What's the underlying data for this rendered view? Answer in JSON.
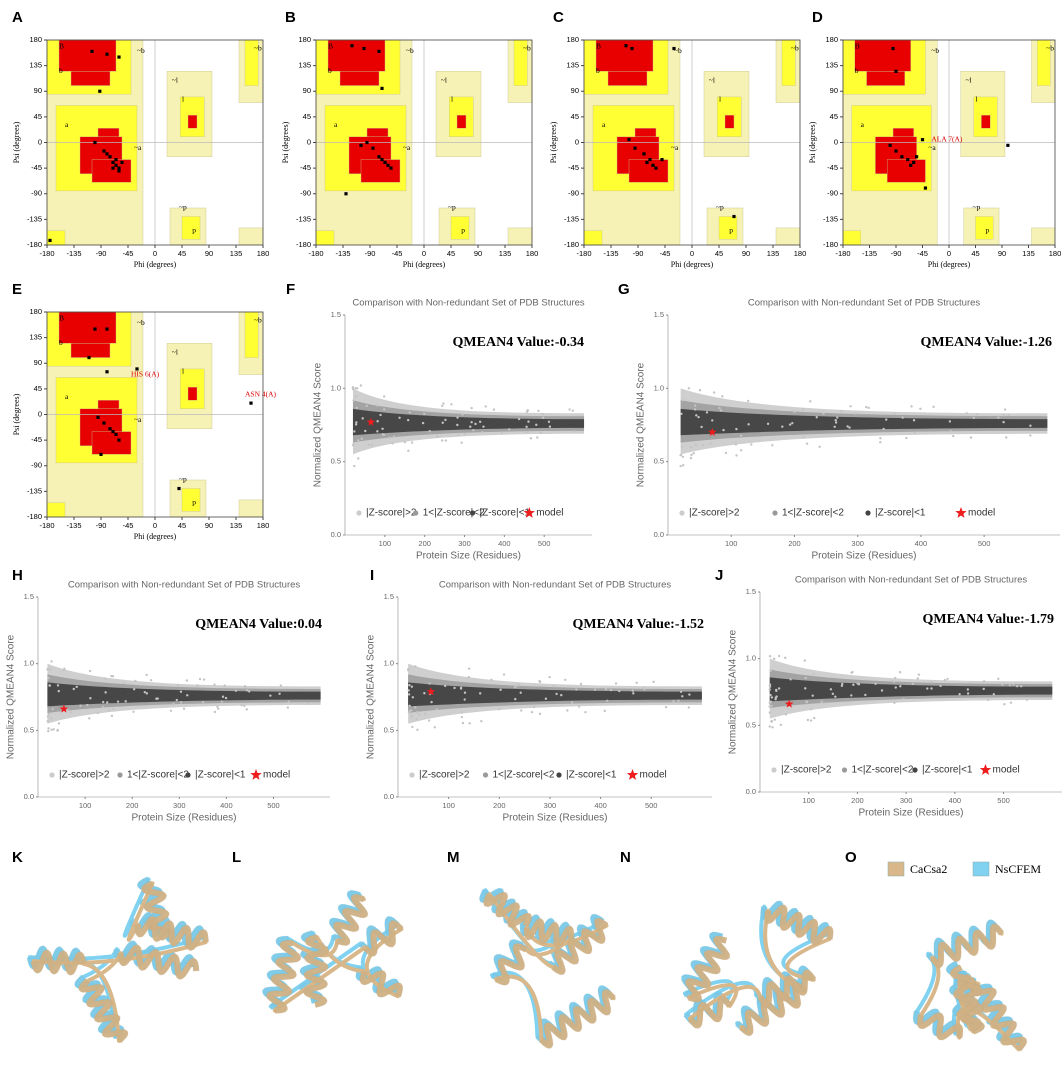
{
  "panel_labels": [
    "A",
    "B",
    "C",
    "D",
    "E",
    "F",
    "G",
    "H",
    "I",
    "J",
    "K",
    "L",
    "M",
    "N",
    "O"
  ],
  "chart_data": [
    {
      "type": "ramachandran",
      "xlabel": "Phi (degrees)",
      "ylabel": "Psi (degrees)",
      "xlim": [
        -180,
        180
      ],
      "ylim": [
        -180,
        180
      ],
      "xticks": [
        -180,
        -135,
        -90,
        -45,
        0,
        45,
        90,
        135,
        180
      ],
      "yticks": [
        -180,
        -135,
        -90,
        -45,
        0,
        45,
        90,
        135,
        180
      ],
      "region_labels": [
        "B",
        "b",
        "a",
        "~b",
        "~a",
        "l",
        "~l",
        "~p",
        "p",
        "~b"
      ],
      "annotations": [],
      "x": [
        -105,
        -80,
        -60,
        -92,
        -100,
        -85,
        -75,
        -70,
        -65,
        -60,
        -55,
        -65,
        -80,
        -60,
        -70,
        -175
      ],
      "values": [
        160,
        155,
        150,
        90,
        0,
        -15,
        -25,
        -35,
        -40,
        -45,
        -35,
        -30,
        -20,
        -50,
        -45,
        -172
      ]
    },
    {
      "type": "ramachandran",
      "xlabel": "Phi (degrees)",
      "ylabel": "Psi (degrees)",
      "xlim": [
        -180,
        180
      ],
      "ylim": [
        -180,
        180
      ],
      "xticks": [
        -180,
        -135,
        -90,
        -45,
        0,
        45,
        90,
        135,
        180
      ],
      "yticks": [
        -180,
        -135,
        -90,
        -45,
        0,
        45,
        90,
        135,
        180
      ],
      "region_labels": [
        "B",
        "b",
        "a",
        "~b",
        "~a",
        "l",
        "~l",
        "~p",
        "p",
        "~b"
      ],
      "annotations": [],
      "x": [
        -120,
        -100,
        -75,
        -70,
        -95,
        -85,
        -75,
        -65,
        -60,
        -55,
        -70,
        -105,
        -130
      ],
      "values": [
        170,
        165,
        160,
        95,
        0,
        -10,
        -25,
        -35,
        -40,
        -45,
        -30,
        -5,
        -90
      ]
    },
    {
      "type": "ramachandran",
      "xlabel": "Phi (degrees)",
      "ylabel": "Psi (degrees)",
      "xlim": [
        -180,
        180
      ],
      "ylim": [
        -180,
        180
      ],
      "xticks": [
        -180,
        -135,
        -90,
        -45,
        0,
        45,
        90,
        135,
        180
      ],
      "yticks": [
        -180,
        -135,
        -90,
        -45,
        0,
        45,
        90,
        135,
        180
      ],
      "region_labels": [
        "B",
        "b",
        "a",
        "~b",
        "~a",
        "l",
        "~l",
        "~p",
        "p",
        "~b"
      ],
      "annotations": [],
      "x": [
        -110,
        -100,
        -105,
        -95,
        -80,
        -70,
        -65,
        -60,
        -75,
        -50,
        70,
        -30
      ],
      "values": [
        170,
        165,
        5,
        -10,
        -20,
        -30,
        -40,
        -45,
        -35,
        -30,
        -130,
        165
      ]
    },
    {
      "type": "ramachandran",
      "xlabel": "Phi (degrees)",
      "ylabel": "Psi (degrees)",
      "xlim": [
        -180,
        180
      ],
      "ylim": [
        -180,
        180
      ],
      "xticks": [
        -180,
        -135,
        -90,
        -45,
        0,
        45,
        90,
        135,
        180
      ],
      "yticks": [
        -180,
        -135,
        -90,
        -45,
        0,
        45,
        90,
        135,
        180
      ],
      "region_labels": [
        "B",
        "b",
        "a",
        "~b",
        "~a",
        "l",
        "~l",
        "~p",
        "p",
        "~b"
      ],
      "annotations": [
        "ALA 7(A)"
      ],
      "x": [
        -95,
        -90,
        -100,
        -90,
        -80,
        -70,
        -65,
        -60,
        -55,
        -45,
        100,
        -40
      ],
      "values": [
        165,
        125,
        -5,
        -15,
        -25,
        -30,
        -40,
        -35,
        -25,
        5,
        -5,
        -80
      ]
    },
    {
      "type": "ramachandran",
      "xlabel": "Phi (degrees)",
      "ylabel": "Psi (degrees)",
      "xlim": [
        -180,
        180
      ],
      "ylim": [
        -180,
        180
      ],
      "xticks": [
        -180,
        -135,
        -90,
        -45,
        0,
        45,
        90,
        135,
        180
      ],
      "yticks": [
        -180,
        -135,
        -90,
        -45,
        0,
        45,
        90,
        135,
        180
      ],
      "region_labels": [
        "B",
        "b",
        "a",
        "~b",
        "~a",
        "l",
        "~l",
        "~p",
        "p",
        "~b"
      ],
      "annotations": [
        "HIS 6(A)",
        "ASN 4(A)"
      ],
      "x": [
        -100,
        -80,
        -110,
        -80,
        -95,
        -85,
        -75,
        -65,
        -60,
        -70,
        -90,
        160,
        -30,
        40
      ],
      "values": [
        150,
        150,
        100,
        75,
        -5,
        -15,
        -25,
        -35,
        -45,
        -30,
        -70,
        20,
        80,
        -130
      ]
    },
    {
      "type": "qmean",
      "title": "Comparison with Non-redundant Set of PDB Structures",
      "annotation": "QMEAN4 Value:-0.34",
      "xlabel": "Protein Size (Residues)",
      "ylabel": "Normalized QMEAN4 Score",
      "xlim": [
        0,
        620
      ],
      "ylim": [
        0,
        1.5
      ],
      "xticks": [
        100,
        200,
        300,
        400,
        500
      ],
      "yticks": [
        {
          "value": 0,
          "label": "0.0"
        },
        0.5,
        {
          "value": 1,
          "label": "1.0"
        },
        1.5
      ],
      "legend": [
        "|Z-score|>2",
        "1<|Z-score|<2",
        "|Z-score|<1",
        "model"
      ],
      "legend_colors": [
        "#cccccc",
        "#9a9a9a",
        "#444444",
        "#ee1c1c"
      ],
      "model": {
        "x": [
          65
        ],
        "values": [
          0.77
        ]
      }
    },
    {
      "type": "qmean",
      "title": "Comparison with Non-redundant Set of PDB Structures",
      "annotation": "QMEAN4 Value:-1.26",
      "xlabel": "Protein Size (Residues)",
      "ylabel": "Normalized QMEAN4 Score",
      "xlim": [
        0,
        620
      ],
      "ylim": [
        0,
        1.5
      ],
      "xticks": [
        100,
        200,
        300,
        400,
        500
      ],
      "yticks": [
        {
          "value": 0,
          "label": "0.0"
        },
        0.5,
        {
          "value": 1,
          "label": "1.0"
        },
        1.5
      ],
      "legend": [
        "|Z-score|>2",
        "1<|Z-score|<2",
        "|Z-score|<1",
        "model"
      ],
      "legend_colors": [
        "#cccccc",
        "#9a9a9a",
        "#444444",
        "#ee1c1c"
      ],
      "model": {
        "x": [
          70
        ],
        "values": [
          0.7
        ]
      }
    },
    {
      "type": "qmean",
      "title": "Comparison with Non-redundant Set of PDB Structures",
      "annotation": "QMEAN4 Value:0.04",
      "xlabel": "Protein Size (Residues)",
      "ylabel": "Normalized QMEAN4 Score",
      "xlim": [
        0,
        620
      ],
      "ylim": [
        0,
        1.5
      ],
      "xticks": [
        100,
        200,
        300,
        400,
        500
      ],
      "yticks": [
        {
          "value": 0,
          "label": "0.0"
        },
        0.5,
        {
          "value": 1,
          "label": "1.0"
        },
        1.5
      ],
      "legend": [
        "|Z-score|>2",
        "1<|Z-score|<2",
        "|Z-score|<1",
        "model"
      ],
      "legend_colors": [
        "#cccccc",
        "#9a9a9a",
        "#444444",
        "#ee1c1c"
      ],
      "model": {
        "x": [
          55
        ],
        "values": [
          0.66
        ]
      }
    },
    {
      "type": "qmean",
      "title": "Comparison with Non-redundant Set of PDB Structures",
      "annotation": "QMEAN4 Value:-1.52",
      "xlabel": "Protein Size (Residues)",
      "ylabel": "Normalized QMEAN4 Score",
      "xlim": [
        0,
        620
      ],
      "ylim": [
        0,
        1.5
      ],
      "xticks": [
        100,
        200,
        300,
        400,
        500
      ],
      "yticks": [
        {
          "value": 0,
          "label": "0.0"
        },
        0.5,
        {
          "value": 1,
          "label": "1.0"
        },
        1.5
      ],
      "legend": [
        "|Z-score|>2",
        "1<|Z-score|<2",
        "|Z-score|<1",
        "model"
      ],
      "legend_colors": [
        "#cccccc",
        "#9a9a9a",
        "#444444",
        "#ee1c1c"
      ],
      "model": {
        "x": [
          65
        ],
        "values": [
          0.79
        ]
      }
    },
    {
      "type": "qmean",
      "title": "Comparison with Non-redundant Set of PDB Structures",
      "annotation": "QMEAN4 Value:-1.79",
      "xlabel": "Protein Size (Residues)",
      "ylabel": "Normalized QMEAN4 Score",
      "xlim": [
        0,
        620
      ],
      "ylim": [
        0,
        1.5
      ],
      "xticks": [
        100,
        200,
        300,
        400,
        500
      ],
      "yticks": [
        {
          "value": 0,
          "label": "0.0"
        },
        0.5,
        {
          "value": 1,
          "label": "1.0"
        },
        1.5
      ],
      "legend": [
        "|Z-score|>2",
        "1<|Z-score|<2",
        "|Z-score|<1",
        "model"
      ],
      "legend_colors": [
        "#cccccc",
        "#9a9a9a",
        "#444444",
        "#ee1c1c"
      ],
      "model": {
        "x": [
          60
        ],
        "values": [
          0.66
        ]
      }
    }
  ],
  "structure_legend": [
    {
      "name": "CaCsa2",
      "color": "#d8b88a"
    },
    {
      "name": "NsCFEM",
      "color": "#80d2f0"
    }
  ]
}
